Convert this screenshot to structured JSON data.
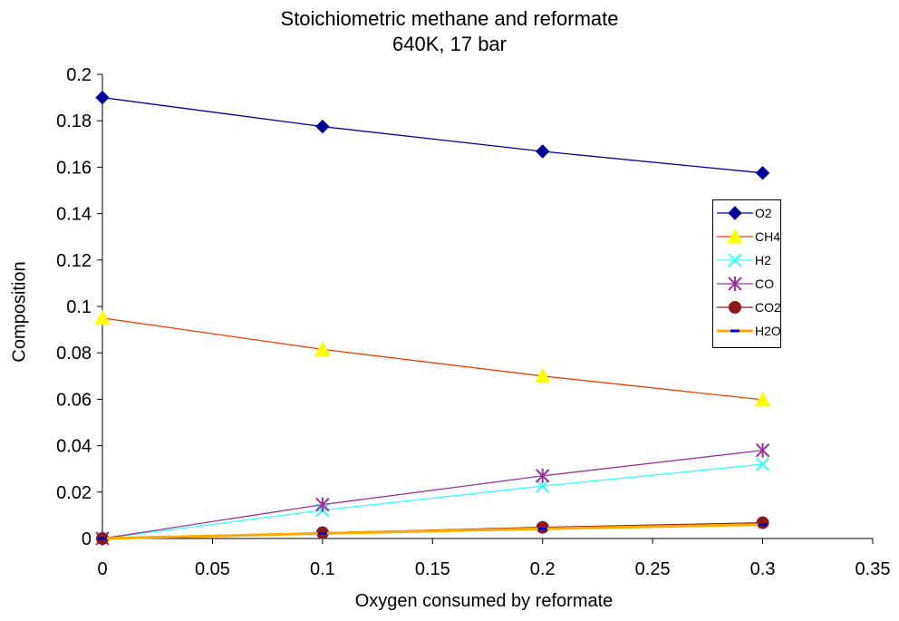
{
  "chart_data": {
    "type": "line",
    "title": "Stoichiometric methane and reformate",
    "subtitle": "640K, 17 bar",
    "xlabel": "Oxygen consumed by reformate",
    "ylabel": "Composition",
    "xlim": [
      0,
      0.35
    ],
    "ylim": [
      0,
      0.2
    ],
    "xticks": [
      "0",
      "0.05",
      "0.1",
      "0.15",
      "0.2",
      "0.25",
      "0.3",
      "0.35"
    ],
    "yticks": [
      "0",
      "0.02",
      "0.04",
      "0.06",
      "0.08",
      "0.1",
      "0.12",
      "0.14",
      "0.16",
      "0.18",
      "0.2"
    ],
    "grid": false,
    "legend_position": "right",
    "x": [
      0,
      0.1,
      0.2,
      0.3
    ],
    "series": [
      {
        "name": "O2",
        "values": [
          0.19,
          0.1775,
          0.1668,
          0.1575
        ],
        "color": "#000099",
        "marker": "diamond"
      },
      {
        "name": "CH4",
        "values": [
          0.095,
          0.0815,
          0.07,
          0.0598
        ],
        "color": "#E8400C",
        "marker": "triangle",
        "marker_color": "#FFFF00"
      },
      {
        "name": "H2",
        "values": [
          0,
          0.0122,
          0.0226,
          0.032
        ],
        "color": "#33FFFF",
        "marker": "x"
      },
      {
        "name": "CO",
        "values": [
          0,
          0.0146,
          0.027,
          0.038
        ],
        "color": "#993399",
        "marker": "star"
      },
      {
        "name": "CO2",
        "values": [
          0,
          0.0025,
          0.0048,
          0.0068
        ],
        "color": "#8B1A1A",
        "marker": "circle"
      },
      {
        "name": "H2O",
        "values": [
          0,
          0.0022,
          0.0042,
          0.006
        ],
        "color": "#FFAA00",
        "marker": "dash",
        "marker_color": "#0000CC"
      }
    ]
  }
}
